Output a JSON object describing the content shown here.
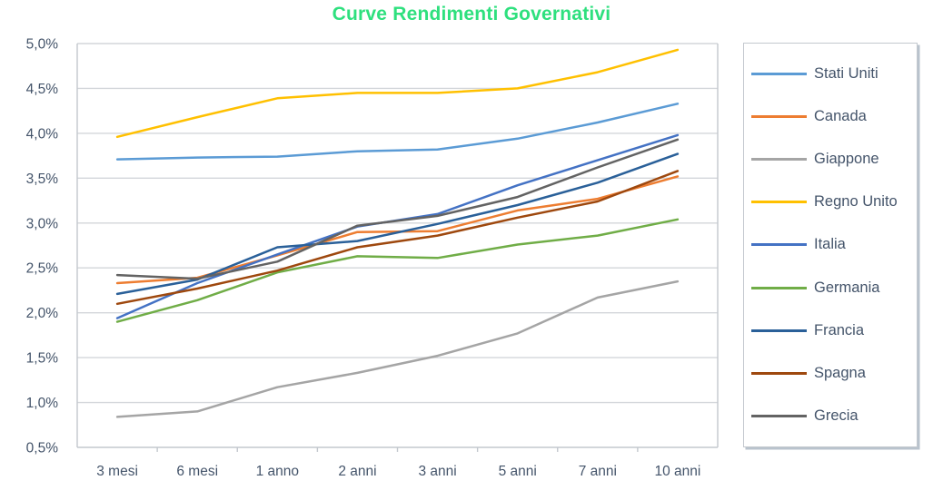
{
  "title": {
    "text": "Curve Rendimenti Governativi",
    "color": "#2ee07e"
  },
  "chart_data": {
    "type": "line",
    "title": "Curve Rendimenti Governativi",
    "categories": [
      "3 mesi",
      "6 mesi",
      "1 anno",
      "2 anni",
      "3 anni",
      "5 anni",
      "7 anni",
      "10 anni"
    ],
    "series": [
      {
        "name": "Stati Uniti",
        "color": "#5B9BD5",
        "values": [
          3.71,
          3.73,
          3.74,
          3.8,
          3.82,
          3.94,
          4.12,
          4.33
        ]
      },
      {
        "name": "Canada",
        "color": "#ED7D31",
        "values": [
          2.33,
          2.39,
          2.64,
          2.9,
          2.91,
          3.14,
          3.27,
          3.52
        ]
      },
      {
        "name": "Giappone",
        "color": "#A5A5A5",
        "values": [
          0.84,
          0.9,
          1.17,
          1.33,
          1.52,
          1.77,
          2.17,
          2.35
        ]
      },
      {
        "name": "Regno Unito",
        "color": "#FFC000",
        "values": [
          3.96,
          4.18,
          4.39,
          4.45,
          4.45,
          4.5,
          4.68,
          4.93
        ]
      },
      {
        "name": "Italia",
        "color": "#4472C4",
        "values": [
          1.94,
          2.33,
          2.65,
          2.96,
          3.1,
          3.42,
          3.7,
          3.98
        ]
      },
      {
        "name": "Germania",
        "color": "#70AD47",
        "values": [
          1.9,
          2.14,
          2.45,
          2.63,
          2.61,
          2.76,
          2.86,
          3.04
        ]
      },
      {
        "name": "Francia",
        "color": "#2A6099",
        "values": [
          2.21,
          2.37,
          2.73,
          2.8,
          2.99,
          3.2,
          3.45,
          3.77
        ]
      },
      {
        "name": "Spagna",
        "color": "#9E480E",
        "values": [
          2.1,
          2.27,
          2.47,
          2.73,
          2.86,
          3.06,
          3.24,
          3.58
        ]
      },
      {
        "name": "Grecia",
        "color": "#636363",
        "values": [
          2.42,
          2.38,
          2.57,
          2.97,
          3.08,
          3.29,
          3.62,
          3.93
        ]
      }
    ],
    "ylim": [
      0.5,
      5.0
    ],
    "ytick_step": 0.5,
    "ytick_labels": [
      "0,5%",
      "1,0%",
      "1,5%",
      "2,0%",
      "2,5%",
      "3,0%",
      "3,5%",
      "4,0%",
      "4,5%",
      "5,0%"
    ],
    "xlabel": "",
    "ylabel": "",
    "grid": "horizontal",
    "legend_position": "right",
    "axis_text_color": "#44546A",
    "grid_color": "#d3d6da",
    "axis_line_color": "#c3c8ce"
  }
}
